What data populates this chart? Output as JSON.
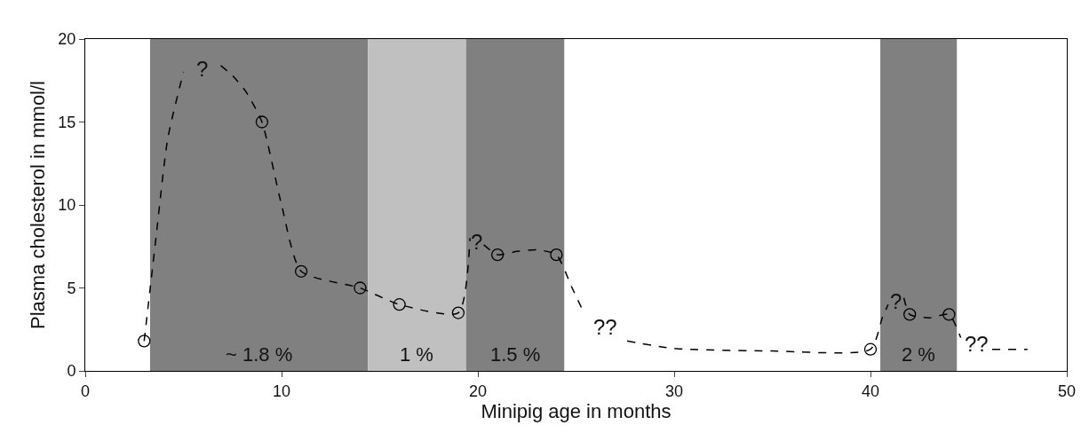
{
  "chart_data": {
    "type": "line",
    "xlabel": "Minipig age in months",
    "ylabel": "Plasma cholesterol in mmol/l",
    "xlim": [
      0,
      50
    ],
    "xticks": [
      0,
      10,
      20,
      30,
      40,
      50
    ],
    "ylim": [
      0,
      20
    ],
    "yticks": [
      0,
      5,
      10,
      15,
      20
    ],
    "grid": false,
    "bands": [
      {
        "axis": "x",
        "from": 3.3,
        "to": 14.4,
        "label": "~ 1.8 %",
        "color": "#808080"
      },
      {
        "axis": "x",
        "from": 14.4,
        "to": 19.4,
        "label": "1 %",
        "color": "#c0c0c0"
      },
      {
        "axis": "x",
        "from": 19.4,
        "to": 24.4,
        "label": "1.5 %",
        "color": "#808080"
      },
      {
        "axis": "x",
        "from": 40.5,
        "to": 44.4,
        "label": "2 %",
        "color": "#808080"
      }
    ],
    "series": [
      {
        "marker": "none",
        "line_style": "dashed",
        "color": "#000000",
        "x": [
          3,
          3.6,
          4.2,
          5,
          5.5,
          6.9,
          7.5,
          8.2,
          9,
          10,
          11,
          14,
          16,
          19,
          19.6,
          20,
          20.3,
          21,
          22,
          23,
          24,
          24.8,
          25.4,
          26,
          27.6,
          30,
          35,
          40,
          40.6,
          40.9,
          41.2,
          41.7,
          42,
          43,
          44,
          44.6,
          45.1,
          46.2,
          48
        ],
        "values": [
          1.8,
          8,
          14,
          18,
          null,
          18.4,
          17.8,
          16.8,
          15,
          10,
          6,
          5,
          4,
          3.5,
          8,
          null,
          7.6,
          7,
          7.2,
          7.3,
          7,
          5,
          3.5,
          null,
          1.8,
          1.35,
          1.2,
          1.3,
          3.2,
          4.0,
          null,
          4.4,
          3.4,
          3.2,
          3.4,
          2,
          null,
          1.3,
          1.3
        ]
      },
      {
        "type": "scatter",
        "marker": "circle",
        "color": "#000000",
        "x": [
          3,
          9,
          11,
          14,
          16,
          19,
          21,
          24,
          40,
          42,
          44
        ],
        "values": [
          1.8,
          15,
          6,
          5,
          4,
          3.5,
          7,
          7,
          1.3,
          3.4,
          3.4
        ]
      }
    ],
    "annotations": [
      "?",
      "?",
      "??",
      "?",
      "??"
    ]
  }
}
